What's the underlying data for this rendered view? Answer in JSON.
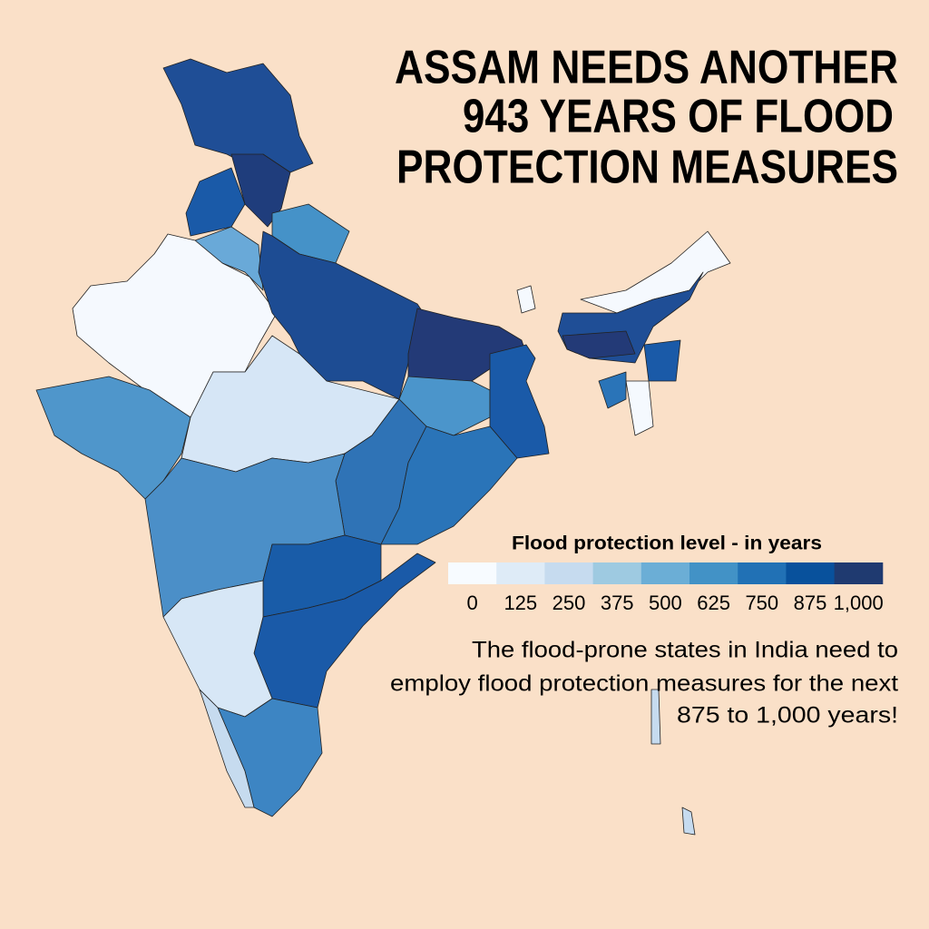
{
  "title": {
    "lines": [
      "ASSAM NEEDS ANOTHER",
      "943 YEARS OF FLOOD",
      "PROTECTION MEASURES"
    ]
  },
  "legend": {
    "title": "Flood protection level - in years",
    "ticks": [
      0,
      125,
      250,
      375,
      500,
      625,
      750,
      875,
      {
        "value": 1000,
        "label": "1,000"
      }
    ],
    "colors": [
      "#f7fbff",
      "#deebf7",
      "#c6dbef",
      "#9ecae1",
      "#6baed6",
      "#4292c6",
      "#2171b5",
      "#08519c",
      "#1f3a70"
    ]
  },
  "note": {
    "lines": [
      "The flood-prone states in India need to",
      "employ flood protection measures for the next",
      "875 to 1,000 years!"
    ]
  }
}
